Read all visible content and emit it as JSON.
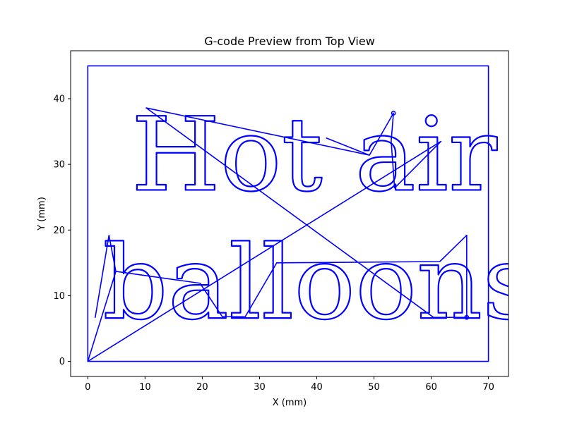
{
  "chart_data": {
    "type": "line",
    "title": "G-code Preview from Top View",
    "xlabel": "X (mm)",
    "ylabel": "Y (mm)",
    "xlim": [
      -3,
      73.5
    ],
    "ylim": [
      -2.3,
      47.3
    ],
    "xticks": [
      0,
      10,
      20,
      30,
      40,
      50,
      60,
      70
    ],
    "yticks": [
      0,
      10,
      20,
      30,
      40
    ],
    "grid": false,
    "line_color": "#0000ff",
    "series": [
      {
        "name": "",
        "x": [
          0,
          70,
          70,
          0,
          0
        ],
        "y": [
          0,
          0,
          45,
          45,
          0
        ]
      },
      {
        "name": "",
        "x": [
          0,
          4.9,
          3.7,
          1.3,
          3.7,
          4.9,
          19.6,
          23.5,
          27.5,
          33.0,
          61.5,
          66.2,
          66.2,
          60.4,
          10.2,
          49.2,
          41.7,
          49.2,
          53.4,
          53.0,
          53.6,
          61.7,
          0
        ],
        "y": [
          0,
          13.7,
          19.2,
          6.7,
          19.2,
          13.7,
          11.9,
          6.8,
          6.8,
          15.0,
          15.2,
          19.2,
          6.7,
          6.7,
          38.6,
          31.4,
          34.0,
          31.4,
          37.8,
          33.5,
          26.4,
          33.5,
          0
        ]
      }
    ],
    "text_paths": [
      {
        "text": "Hot air",
        "x": 7.6,
        "y": 26.1,
        "font_size_mm": 15.5
      },
      {
        "text": "balloons!",
        "x": 2.6,
        "y": 6.6,
        "font_size_mm": 15.5
      }
    ]
  }
}
